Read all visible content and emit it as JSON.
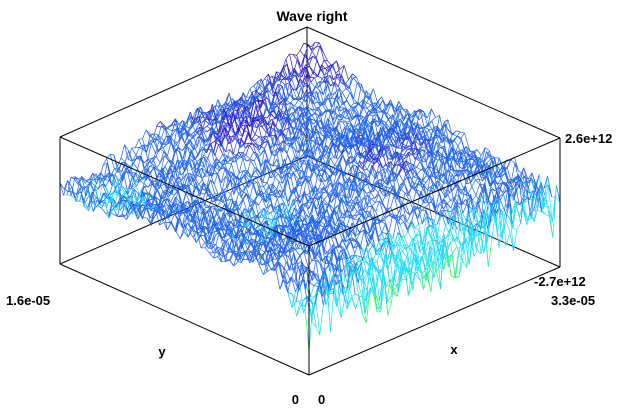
{
  "chart_data": {
    "type": "surface-3d",
    "title": "Wave right",
    "xlabel": "x",
    "ylabel": "y",
    "x_range": [
      0,
      3.3e-05
    ],
    "y_range": [
      0,
      1.6e-05
    ],
    "z_range": [
      -2700000000000.0,
      2600000000000.0
    ],
    "tick_labels": {
      "x_min": "0",
      "x_max": "3.3e-05",
      "y_min": "0",
      "y_max": "1.6e-05",
      "z_max": "2.6e+12",
      "z_min": "-2.7e+12"
    },
    "render_style": "wireframe mesh, rainbow colormap by height",
    "colormap": [
      "#33ff55",
      "#22ddff",
      "#2266ee",
      "#3322cc",
      "#ff66ff"
    ],
    "grid": false,
    "legend": "none"
  },
  "axes_box_color": "#000000"
}
